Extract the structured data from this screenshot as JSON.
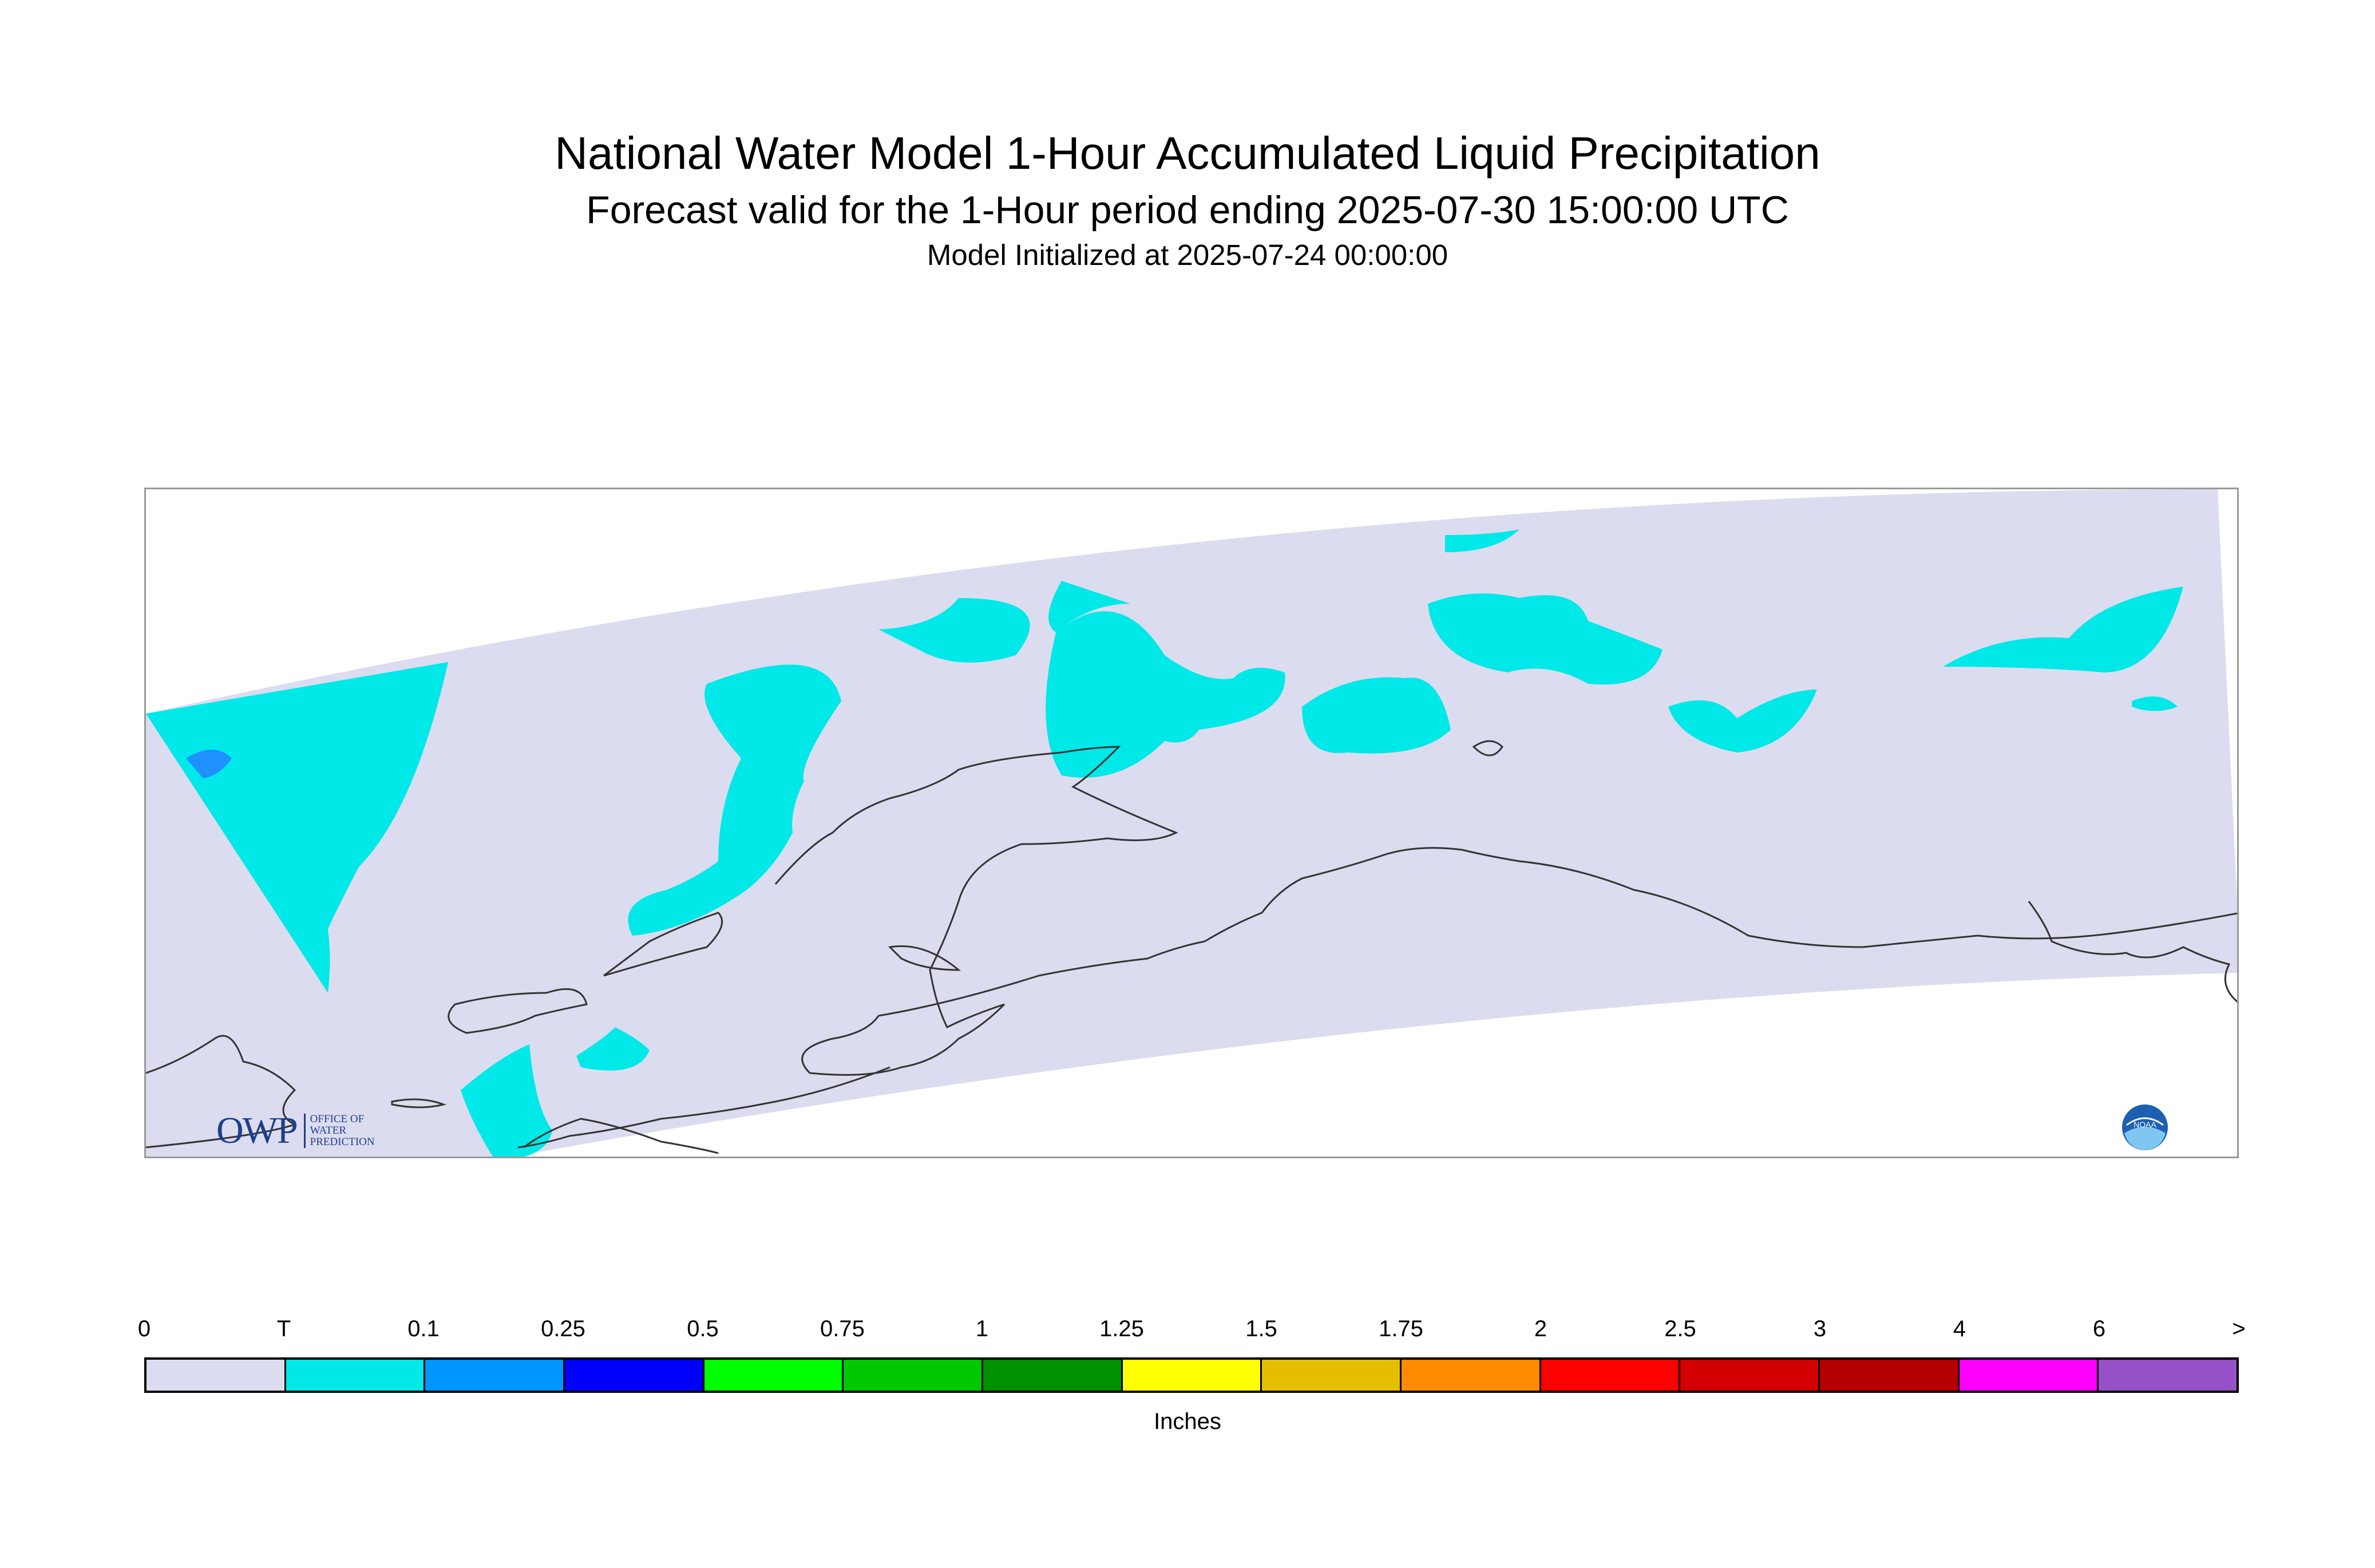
{
  "header": {
    "title": "National Water Model 1-Hour Accumulated Liquid Precipitation",
    "subtitle": "Forecast valid for the 1-Hour period ending 2025-07-30 15:00:00 UTC",
    "init": "Model Initialized at 2025-07-24 00:00:00"
  },
  "map": {
    "domain_fill_color": "#dcdcf0",
    "coastline_color": "#333333",
    "precip_trace_color": "#00e8e8",
    "precip_light_color": "#1e90ff"
  },
  "logos": {
    "owp": {
      "mark": "OWP",
      "lines": [
        "OFFICE OF",
        "WATER",
        "PREDICTION"
      ]
    },
    "noaa": {
      "text": "NOAA"
    }
  },
  "legend": {
    "labels": [
      "0",
      "T",
      "0.1",
      "0.25",
      "0.5",
      "0.75",
      "1",
      "1.25",
      "1.5",
      "1.75",
      "2",
      "2.5",
      "3",
      "4",
      "6",
      ">"
    ],
    "colors": [
      "#dcdcf0",
      "#00e8e8",
      "#0096ff",
      "#0000ff",
      "#00ff00",
      "#00c800",
      "#009100",
      "#ffff00",
      "#e6be00",
      "#ff8c00",
      "#ff0000",
      "#d20000",
      "#b40000",
      "#ff00ff",
      "#9650c8"
    ],
    "units": "Inches"
  }
}
